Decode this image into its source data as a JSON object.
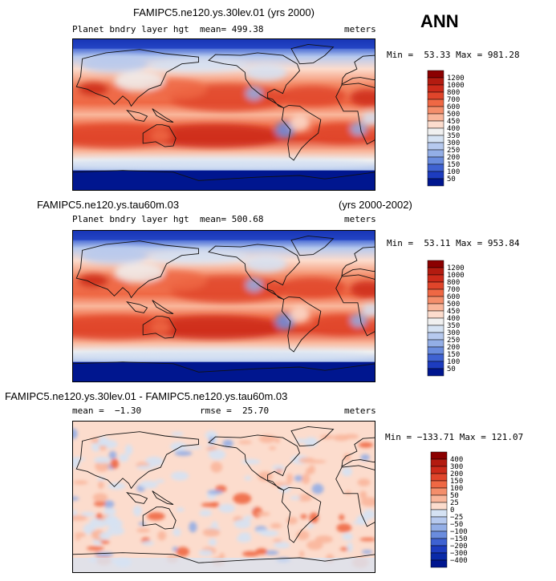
{
  "season": "ANN",
  "colors": {
    "ocean_bg": "#f3dccf",
    "map_border": "#000000",
    "coast": "#111111"
  },
  "chart_data": [
    {
      "type": "heatmap",
      "title": "FAMIPC5.ne120.ys.30lev.01 (yrs 2000)",
      "variable": "Planet bndry layer hgt",
      "mean_text": "mean= 499.38",
      "units": "meters",
      "minmax_text": "Min =  53.33 Max = 981.28",
      "colorbar_levels": [
        "1200",
        "1000",
        "800",
        "700",
        "600",
        "500",
        "450",
        "400",
        "350",
        "300",
        "250",
        "200",
        "150",
        "100",
        "50"
      ],
      "colorbar_colors": [
        "#8b0000",
        "#b31b10",
        "#cc2a1a",
        "#e0452b",
        "#ef6844",
        "#f48e6b",
        "#f9b69b",
        "#fcdccd",
        "#f0f0f0",
        "#d5e2f3",
        "#b6c9ee",
        "#93aee6",
        "#6a8cde",
        "#3f62d2",
        "#1d3cbf",
        "#00168f"
      ]
    },
    {
      "type": "heatmap",
      "title": "FAMIPC5.ne120.ys.tau60m.03",
      "period": "(yrs 2000-2002)",
      "variable": "Planet bndry layer hgt",
      "mean_text": "mean= 500.68",
      "units": "meters",
      "minmax_text": "Min =  53.11 Max = 953.84",
      "colorbar_levels": [
        "1200",
        "1000",
        "800",
        "700",
        "600",
        "500",
        "450",
        "400",
        "350",
        "300",
        "250",
        "200",
        "150",
        "100",
        "50"
      ],
      "colorbar_colors": [
        "#8b0000",
        "#b31b10",
        "#cc2a1a",
        "#e0452b",
        "#ef6844",
        "#f48e6b",
        "#f9b69b",
        "#fcdccd",
        "#f0f0f0",
        "#d5e2f3",
        "#b6c9ee",
        "#93aee6",
        "#6a8cde",
        "#3f62d2",
        "#1d3cbf",
        "#00168f"
      ]
    },
    {
      "type": "heatmap",
      "title": "FAMIPC5.ne120.ys.30lev.01 - FAMIPC5.ne120.ys.tau60m.03",
      "mean_text": "mean =  −1.30",
      "rmse_text": "rmse =  25.70",
      "units": "meters",
      "minmax_text": "Min = −133.71 Max = 121.07",
      "colorbar_levels": [
        "400",
        "300",
        "200",
        "150",
        "100",
        "50",
        "25",
        "0",
        "−25",
        "−50",
        "−100",
        "−150",
        "−200",
        "−300",
        "−400"
      ],
      "colorbar_colors": [
        "#8b0000",
        "#b31b10",
        "#cc2a1a",
        "#e0452b",
        "#ef6844",
        "#f48e6b",
        "#f9b69b",
        "#fcdccd",
        "#d5e2f3",
        "#b6c9ee",
        "#93aee6",
        "#6a8cde",
        "#3f62d2",
        "#1d3cbf",
        "#0a2aa8",
        "#00168f"
      ]
    }
  ]
}
